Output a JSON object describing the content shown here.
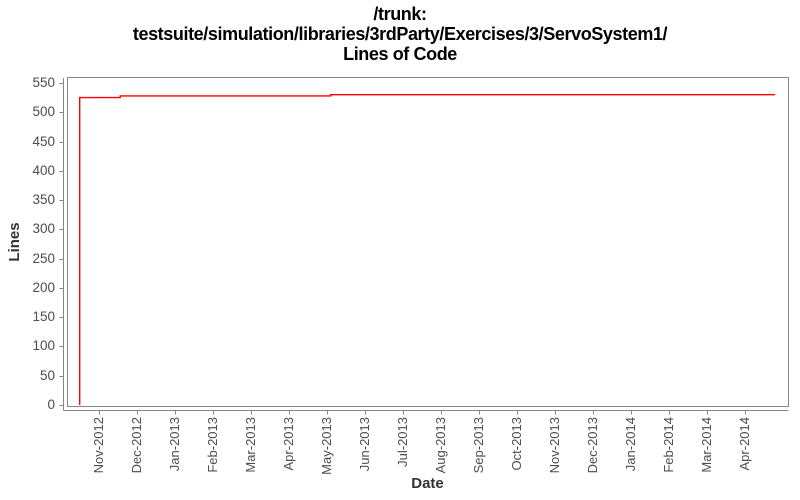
{
  "title": {
    "line1": "/trunk:",
    "line2": "testsuite/simulation/libraries/3rdParty/Exercises/3/ServoSystem1/",
    "line3": "Lines of Code"
  },
  "chart_data": {
    "type": "line",
    "title": "/trunk: testsuite/simulation/libraries/3rdParty/Exercises/3/ServoSystem1/ Lines of Code",
    "xlabel": "Date",
    "ylabel": "Lines",
    "ylim": [
      0,
      550
    ],
    "y_ticks": [
      0,
      50,
      100,
      150,
      200,
      250,
      300,
      350,
      400,
      450,
      500,
      550
    ],
    "x_tick_labels": [
      "Nov-2012",
      "Dec-2012",
      "Jan-2013",
      "Feb-2013",
      "Mar-2013",
      "Apr-2013",
      "May-2013",
      "Jun-2013",
      "Jul-2013",
      "Aug-2013",
      "Sep-2013",
      "Oct-2013",
      "Nov-2013",
      "Dec-2013",
      "Jan-2014",
      "Feb-2014",
      "Mar-2014",
      "Apr-2014"
    ],
    "grid": false,
    "legend": false,
    "line_color": "#ff0000",
    "series": [
      {
        "name": "Lines of Code",
        "points": [
          {
            "date": "2012-10-16",
            "value": 0
          },
          {
            "date": "2012-10-16",
            "value": 525
          },
          {
            "date": "2012-11-18",
            "value": 525
          },
          {
            "date": "2012-11-18",
            "value": 528
          },
          {
            "date": "2013-05-04",
            "value": 528
          },
          {
            "date": "2013-05-04",
            "value": 530
          },
          {
            "date": "2014-04-25",
            "value": 530
          }
        ]
      }
    ]
  },
  "colors": {
    "line": "#ff0000",
    "axis": "#858585",
    "tick_label": "#4d4d4d",
    "axis_label": "#333333",
    "title": "#000000",
    "background": "#ffffff"
  }
}
